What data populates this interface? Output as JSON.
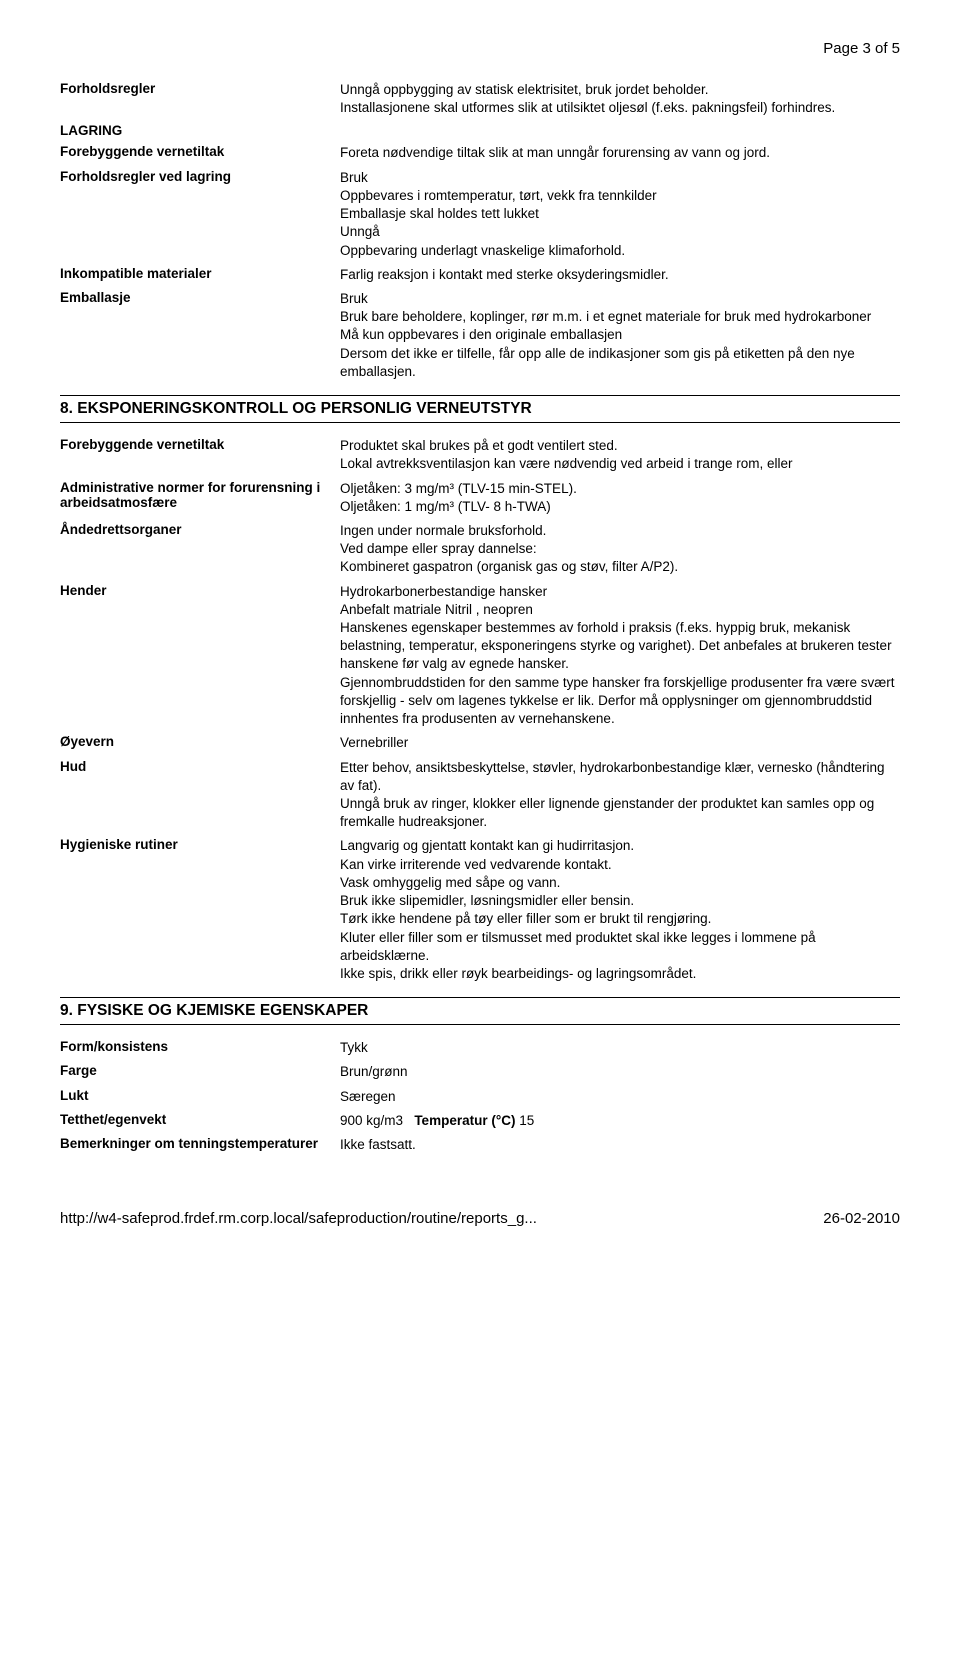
{
  "page_number": "Page 3 of 5",
  "s7": {
    "forholdsregler": {
      "label": "Forholdsregler",
      "value": "Unngå oppbygging av statisk elektrisitet, bruk jordet beholder.\nInstallasjonene skal utformes slik at utilsiktet oljesøl (f.eks. pakningsfeil) forhindres."
    },
    "lagring_header": "LAGRING",
    "forebyggende": {
      "label": "Forebyggende vernetiltak",
      "value": "Foreta nødvendige tiltak slik at man unngår forurensing av vann og jord."
    },
    "lagring": {
      "label": "Forholdsregler ved lagring",
      "value": "Bruk\nOppbevares i romtemperatur, tørt, vekk fra tennkilder\nEmballasje skal holdes tett lukket\nUnngå\nOppbevaring underlagt vnaskelige klimaforhold."
    },
    "inkompatible": {
      "label": "Inkompatible materialer",
      "value": "Farlig reaksjon i kontakt med sterke oksyderingsmidler."
    },
    "emballasje": {
      "label": "Emballasje",
      "value": "Bruk\nBruk bare beholdere, koplinger, rør m.m. i et egnet materiale for bruk med hydrokarboner\nMå kun oppbevares i den originale emballasjen\nDersom det ikke er tilfelle, får opp alle de indikasjoner som gis på etiketten på den nye emballasjen."
    }
  },
  "s8": {
    "title": "8. EKSPONERINGSKONTROLL OG PERSONLIG VERNEUTSTYR",
    "forebyggende": {
      "label": "Forebyggende vernetiltak",
      "value": "Produktet skal brukes på et godt ventilert sted.\nLokal avtrekksventilasjon kan være nødvendig ved arbeid i trange rom, eller"
    },
    "admin": {
      "label": "Administrative normer for forurensning i arbeidsatmosfære",
      "value": "Oljetåken: 3 mg/m³ (TLV-15 min-STEL).\nOljetåken: 1 mg/m³ (TLV- 8 h-TWA)"
    },
    "andrett": {
      "label": "Åndedrettsorganer",
      "value": "Ingen under normale bruksforhold.\nVed dampe eller spray dannelse:\nKombineret gaspatron (organisk gas og støv, filter A/P2)."
    },
    "hender": {
      "label": "Hender",
      "value": "Hydrokarbonerbestandige hansker\nAnbefalt matriale Nitril , neopren\nHanskenes egenskaper bestemmes av forhold i praksis (f.eks. hyppig bruk, mekanisk belastning, temperatur, eksponeringens styrke og varighet). Det anbefales at brukeren tester hanskene før valg av egnede hansker.\nGjennombruddstiden for den samme type hansker fra forskjellige produsenter fra være svært forskjellig - selv om lagenes tykkelse er lik. Derfor må opplysninger om gjennombruddstid innhentes fra produsenten av vernehanskene."
    },
    "oyevern": {
      "label": "Øyevern",
      "value": "Vernebriller"
    },
    "hud": {
      "label": "Hud",
      "value": "Etter behov, ansiktsbeskyttelse, støvler, hydrokarbonbestandige klær, vernesko (håndtering av fat).\nUnngå bruk av ringer, klokker eller lignende gjenstander der produktet kan samles opp og fremkalle hudreaksjoner."
    },
    "hygiene": {
      "label": "Hygieniske rutiner",
      "value": "Langvarig og gjentatt kontakt kan gi hudirritasjon.\nKan virke irriterende ved vedvarende kontakt.\nVask omhyggelig med såpe og vann.\nBruk ikke slipemidler, løsningsmidler eller bensin.\nTørk ikke hendene på tøy eller filler som er brukt til rengjøring.\nKluter eller filler som er tilsmusset med produktet skal ikke legges i lommene på arbeidsklærne.\nIkke spis, drikk eller røyk bearbeidings- og lagringsområdet."
    }
  },
  "s9": {
    "title": "9. FYSISKE OG KJEMISKE EGENSKAPER",
    "form": {
      "label": "Form/konsistens",
      "value": "Tykk"
    },
    "farge": {
      "label": "Farge",
      "value": "Brun/grønn"
    },
    "lukt": {
      "label": "Lukt",
      "value": "Særegen"
    },
    "tetthet": {
      "label": "Tetthet/egenvekt",
      "v1": "900 kg/m3",
      "tlabel": "Temperatur (°C)",
      "tval": "15"
    },
    "bemerk": {
      "label": "Bemerkninger om tenningstemperaturer",
      "value": "Ikke fastsatt."
    }
  },
  "footer": {
    "url": "http://w4-safeprod.frdef.rm.corp.local/safeproduction/routine/reports_g...",
    "date": "26-02-2010"
  }
}
